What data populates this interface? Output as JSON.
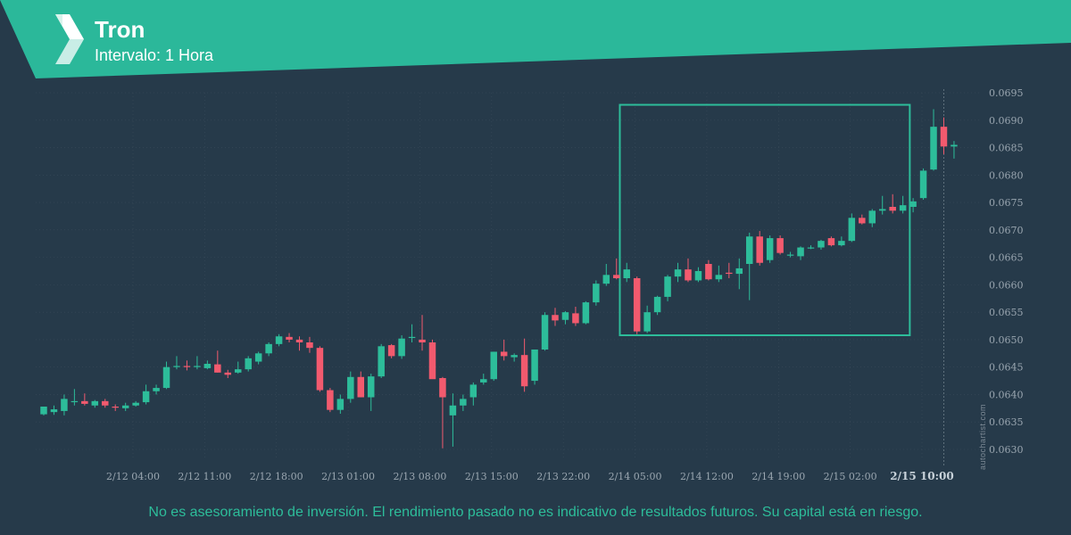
{
  "header": {
    "title": "Tron",
    "subtitle": "Intervalo: 1 Hora"
  },
  "footer": {
    "disclaimer": "No es asesoramiento de inversión. El rendimiento pasado no es indicativo de resultados futuros. Su capital está en riesgo.",
    "watermark": "autochartist.com"
  },
  "colors": {
    "background": "#263a4a",
    "banner": "#2bb89a",
    "bullish": "#2dbd9a",
    "bearish": "#f25a6e",
    "highlight_box": "#2dbd9a",
    "grid": "#3a4b5a"
  },
  "chart_data": {
    "type": "candlestick",
    "x_tick_labels": [
      "2/12 04:00",
      "2/12 11:00",
      "2/12 18:00",
      "2/13 01:00",
      "2/13 08:00",
      "2/13 15:00",
      "2/13 22:00",
      "2/14 05:00",
      "2/14 12:00",
      "2/14 19:00",
      "2/15 02:00",
      "2/15 10:00"
    ],
    "y_tick_labels": [
      "0.0630",
      "0.0635",
      "0.0640",
      "0.0645",
      "0.0650",
      "0.0655",
      "0.0660",
      "0.0665",
      "0.0670",
      "0.0675",
      "0.0680",
      "0.0685",
      "0.0690",
      "0.0695"
    ],
    "ylim": [
      0.063,
      0.0695
    ],
    "current_time_label": "2/15 10:00",
    "grid": true,
    "highlight_region": {
      "from_candle": 57,
      "to_candle": 84,
      "low": 0.06508,
      "high": 0.06928
    },
    "candles": [
      {
        "o": 0.06364,
        "h": 0.06378,
        "l": 0.06362,
        "c": 0.06378
      },
      {
        "o": 0.06368,
        "h": 0.0638,
        "l": 0.06363,
        "c": 0.06373
      },
      {
        "o": 0.0637,
        "h": 0.064,
        "l": 0.06362,
        "c": 0.06392
      },
      {
        "o": 0.06388,
        "h": 0.0641,
        "l": 0.0638,
        "c": 0.06388
      },
      {
        "o": 0.06388,
        "h": 0.06402,
        "l": 0.0638,
        "c": 0.06383
      },
      {
        "o": 0.0638,
        "h": 0.0639,
        "l": 0.06376,
        "c": 0.06388
      },
      {
        "o": 0.06388,
        "h": 0.06392,
        "l": 0.06376,
        "c": 0.0638
      },
      {
        "o": 0.06378,
        "h": 0.06382,
        "l": 0.0637,
        "c": 0.06376
      },
      {
        "o": 0.06375,
        "h": 0.06385,
        "l": 0.0637,
        "c": 0.0638
      },
      {
        "o": 0.0638,
        "h": 0.06388,
        "l": 0.06378,
        "c": 0.06385
      },
      {
        "o": 0.06386,
        "h": 0.06418,
        "l": 0.06382,
        "c": 0.06406
      },
      {
        "o": 0.06406,
        "h": 0.06418,
        "l": 0.064,
        "c": 0.06412
      },
      {
        "o": 0.06412,
        "h": 0.0646,
        "l": 0.0641,
        "c": 0.0645
      },
      {
        "o": 0.0645,
        "h": 0.0647,
        "l": 0.06446,
        "c": 0.06452
      },
      {
        "o": 0.06452,
        "h": 0.06462,
        "l": 0.06444,
        "c": 0.0645
      },
      {
        "o": 0.0645,
        "h": 0.0647,
        "l": 0.06446,
        "c": 0.06452
      },
      {
        "o": 0.06448,
        "h": 0.06462,
        "l": 0.06446,
        "c": 0.06456
      },
      {
        "o": 0.06455,
        "h": 0.0648,
        "l": 0.0644,
        "c": 0.0644
      },
      {
        "o": 0.0644,
        "h": 0.06445,
        "l": 0.0643,
        "c": 0.06436
      },
      {
        "o": 0.0644,
        "h": 0.0646,
        "l": 0.06438,
        "c": 0.06446
      },
      {
        "o": 0.06446,
        "h": 0.0647,
        "l": 0.06442,
        "c": 0.06466
      },
      {
        "o": 0.0646,
        "h": 0.06478,
        "l": 0.06455,
        "c": 0.06475
      },
      {
        "o": 0.06475,
        "h": 0.06495,
        "l": 0.0647,
        "c": 0.06492
      },
      {
        "o": 0.06492,
        "h": 0.0651,
        "l": 0.06488,
        "c": 0.06506
      },
      {
        "o": 0.06505,
        "h": 0.06512,
        "l": 0.06495,
        "c": 0.065
      },
      {
        "o": 0.065,
        "h": 0.06506,
        "l": 0.0648,
        "c": 0.06495
      },
      {
        "o": 0.06495,
        "h": 0.06505,
        "l": 0.06476,
        "c": 0.06485
      },
      {
        "o": 0.06485,
        "h": 0.06488,
        "l": 0.06405,
        "c": 0.06408
      },
      {
        "o": 0.06408,
        "h": 0.06412,
        "l": 0.06368,
        "c": 0.06372
      },
      {
        "o": 0.06372,
        "h": 0.064,
        "l": 0.06365,
        "c": 0.06392
      },
      {
        "o": 0.06392,
        "h": 0.06442,
        "l": 0.06385,
        "c": 0.06432
      },
      {
        "o": 0.06432,
        "h": 0.06442,
        "l": 0.06395,
        "c": 0.06395
      },
      {
        "o": 0.06395,
        "h": 0.06438,
        "l": 0.0637,
        "c": 0.06433
      },
      {
        "o": 0.06433,
        "h": 0.06492,
        "l": 0.0643,
        "c": 0.06488
      },
      {
        "o": 0.0649,
        "h": 0.06492,
        "l": 0.06466,
        "c": 0.0647
      },
      {
        "o": 0.0647,
        "h": 0.06508,
        "l": 0.06465,
        "c": 0.06502
      },
      {
        "o": 0.06505,
        "h": 0.06528,
        "l": 0.06495,
        "c": 0.06505
      },
      {
        "o": 0.065,
        "h": 0.06545,
        "l": 0.0648,
        "c": 0.06495
      },
      {
        "o": 0.06495,
        "h": 0.065,
        "l": 0.0643,
        "c": 0.06428
      },
      {
        "o": 0.0643,
        "h": 0.06432,
        "l": 0.06302,
        "c": 0.06395
      },
      {
        "o": 0.06362,
        "h": 0.06402,
        "l": 0.06305,
        "c": 0.0638
      },
      {
        "o": 0.0638,
        "h": 0.064,
        "l": 0.0637,
        "c": 0.06392
      },
      {
        "o": 0.06395,
        "h": 0.06422,
        "l": 0.0638,
        "c": 0.06418
      },
      {
        "o": 0.06422,
        "h": 0.06438,
        "l": 0.06418,
        "c": 0.06428
      },
      {
        "o": 0.06428,
        "h": 0.06478,
        "l": 0.06425,
        "c": 0.06478
      },
      {
        "o": 0.06478,
        "h": 0.065,
        "l": 0.06462,
        "c": 0.0647
      },
      {
        "o": 0.06468,
        "h": 0.06475,
        "l": 0.0646,
        "c": 0.06472
      },
      {
        "o": 0.06472,
        "h": 0.06502,
        "l": 0.06405,
        "c": 0.06415
      },
      {
        "o": 0.06425,
        "h": 0.06482,
        "l": 0.06418,
        "c": 0.06482
      },
      {
        "o": 0.06482,
        "h": 0.0655,
        "l": 0.0648,
        "c": 0.06545
      },
      {
        "o": 0.06545,
        "h": 0.06558,
        "l": 0.06525,
        "c": 0.06535
      },
      {
        "o": 0.06536,
        "h": 0.06552,
        "l": 0.06528,
        "c": 0.0655
      },
      {
        "o": 0.06548,
        "h": 0.0656,
        "l": 0.06525,
        "c": 0.0653
      },
      {
        "o": 0.0653,
        "h": 0.0657,
        "l": 0.06528,
        "c": 0.06568
      },
      {
        "o": 0.06568,
        "h": 0.06608,
        "l": 0.06562,
        "c": 0.06602
      },
      {
        "o": 0.06602,
        "h": 0.06638,
        "l": 0.06598,
        "c": 0.06618
      },
      {
        "o": 0.06618,
        "h": 0.06648,
        "l": 0.0661,
        "c": 0.06612
      },
      {
        "o": 0.06612,
        "h": 0.0664,
        "l": 0.06605,
        "c": 0.06628
      },
      {
        "o": 0.06612,
        "h": 0.06615,
        "l": 0.0651,
        "c": 0.06515
      },
      {
        "o": 0.06515,
        "h": 0.06562,
        "l": 0.06512,
        "c": 0.0655
      },
      {
        "o": 0.0655,
        "h": 0.0658,
        "l": 0.06545,
        "c": 0.06578
      },
      {
        "o": 0.06578,
        "h": 0.06618,
        "l": 0.0657,
        "c": 0.06615
      },
      {
        "o": 0.06615,
        "h": 0.0664,
        "l": 0.06605,
        "c": 0.06628
      },
      {
        "o": 0.06628,
        "h": 0.06648,
        "l": 0.06605,
        "c": 0.06608
      },
      {
        "o": 0.06608,
        "h": 0.06632,
        "l": 0.06605,
        "c": 0.06625
      },
      {
        "o": 0.06638,
        "h": 0.06645,
        "l": 0.06608,
        "c": 0.0661
      },
      {
        "o": 0.0661,
        "h": 0.06635,
        "l": 0.06605,
        "c": 0.06618
      },
      {
        "o": 0.06622,
        "h": 0.0664,
        "l": 0.06612,
        "c": 0.0662
      },
      {
        "o": 0.0662,
        "h": 0.06648,
        "l": 0.06592,
        "c": 0.0663
      },
      {
        "o": 0.06638,
        "h": 0.06695,
        "l": 0.06572,
        "c": 0.06688
      },
      {
        "o": 0.06688,
        "h": 0.06698,
        "l": 0.06635,
        "c": 0.0664
      },
      {
        "o": 0.06645,
        "h": 0.0669,
        "l": 0.0664,
        "c": 0.06685
      },
      {
        "o": 0.06685,
        "h": 0.0669,
        "l": 0.06655,
        "c": 0.06658
      },
      {
        "o": 0.06655,
        "h": 0.0666,
        "l": 0.0665,
        "c": 0.06655
      },
      {
        "o": 0.06652,
        "h": 0.0667,
        "l": 0.06645,
        "c": 0.06668
      },
      {
        "o": 0.06668,
        "h": 0.06672,
        "l": 0.06665,
        "c": 0.06668
      },
      {
        "o": 0.06668,
        "h": 0.06682,
        "l": 0.06664,
        "c": 0.0668
      },
      {
        "o": 0.06685,
        "h": 0.06688,
        "l": 0.0667,
        "c": 0.06672
      },
      {
        "o": 0.06672,
        "h": 0.06688,
        "l": 0.0667,
        "c": 0.0668
      },
      {
        "o": 0.0668,
        "h": 0.0673,
        "l": 0.06678,
        "c": 0.06722
      },
      {
        "o": 0.06722,
        "h": 0.06728,
        "l": 0.0671,
        "c": 0.06712
      },
      {
        "o": 0.06712,
        "h": 0.06738,
        "l": 0.06705,
        "c": 0.06735
      },
      {
        "o": 0.06735,
        "h": 0.06762,
        "l": 0.06728,
        "c": 0.06738
      },
      {
        "o": 0.06742,
        "h": 0.06765,
        "l": 0.0673,
        "c": 0.06735
      },
      {
        "o": 0.06735,
        "h": 0.06762,
        "l": 0.0673,
        "c": 0.06745
      },
      {
        "o": 0.06742,
        "h": 0.06758,
        "l": 0.06732,
        "c": 0.06752
      },
      {
        "o": 0.06758,
        "h": 0.06812,
        "l": 0.06755,
        "c": 0.06808
      },
      {
        "o": 0.0681,
        "h": 0.0692,
        "l": 0.06808,
        "c": 0.06888
      },
      {
        "o": 0.06888,
        "h": 0.06905,
        "l": 0.06838,
        "c": 0.06852
      },
      {
        "o": 0.06852,
        "h": 0.06862,
        "l": 0.0683,
        "c": 0.06855
      }
    ]
  }
}
